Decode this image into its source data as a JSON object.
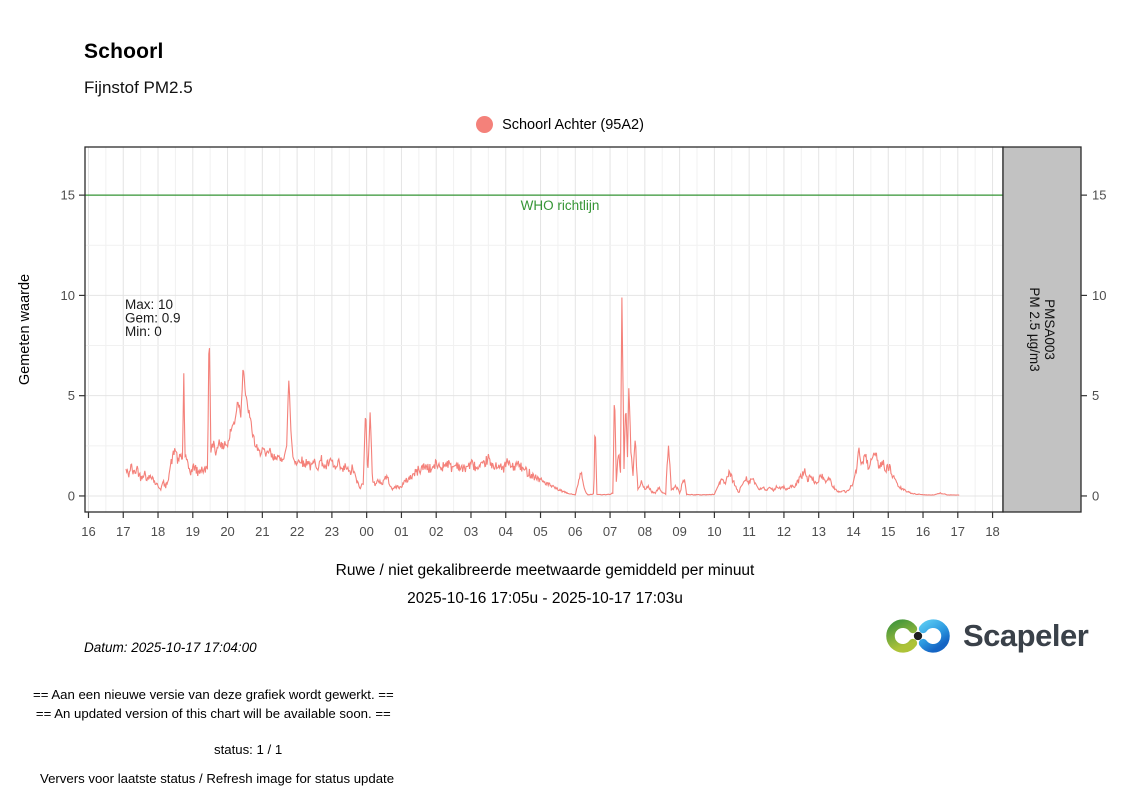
{
  "header": {
    "title": "Schoorl",
    "subtitle": "Fijnstof PM2.5"
  },
  "legend": {
    "label": "Schoorl Achter (95A2)",
    "color": "#f4817a"
  },
  "annotation": {
    "max": "Max: 10",
    "gem": "Gem: 0.9",
    "min": "Min: 0"
  },
  "facet_strip": {
    "line1": "PMSA003",
    "line2": "PM 2.5 µg/m3",
    "fill": "#c2c2c2",
    "border": "#2b2b2b"
  },
  "caption": {
    "line1": "Ruwe / niet gekalibreerde meetwaarde gemiddeld per minuut",
    "line2": "2025-10-16 17:05u - 2025-10-17 17:03u"
  },
  "datum": "Datum: 2025-10-17 17:04:00",
  "brand": {
    "name": "Scapeler"
  },
  "messages": {
    "notice_nl": "== Aan een nieuwe versie van deze grafiek wordt gewerkt. ==",
    "notice_en": "== An updated version of this chart will be available soon. ==",
    "status": "status: 1 / 1",
    "refresh": "Ververs voor laatste status / Refresh image for status update"
  },
  "chart_data": {
    "type": "line",
    "title": "Schoorl - Fijnstof PM2.5",
    "series_name": "Schoorl Achter (95A2)",
    "line_color": "#f4817a",
    "ylabel": "Gemeten waarde",
    "xlabel": "",
    "x_axis_note": "x = hours on axis; 16 = 2025-10-16 16:00u, 42 = 2025-10-17 18:00u; data runs 17:05u to 17:03u next day",
    "xlim": [
      15.9,
      42.3
    ],
    "ylim": [
      -0.8,
      17.4
    ],
    "grid": true,
    "x_tick_values": [
      16,
      17,
      18,
      19,
      20,
      21,
      22,
      23,
      24,
      25,
      26,
      27,
      28,
      29,
      30,
      31,
      32,
      33,
      34,
      35,
      36,
      37,
      38,
      39,
      40,
      41,
      42
    ],
    "x_tick_labels": [
      "16",
      "17",
      "18",
      "19",
      "20",
      "21",
      "22",
      "23",
      "00",
      "01",
      "02",
      "03",
      "04",
      "05",
      "06",
      "07",
      "08",
      "09",
      "10",
      "11",
      "12",
      "13",
      "14",
      "15",
      "16",
      "17",
      "18"
    ],
    "y_tick_values": [
      0,
      5,
      10,
      15
    ],
    "y_minor_values": [
      2.5,
      7.5,
      12.5
    ],
    "reference_line": {
      "y": 15,
      "label": "WHO richtlijn",
      "color": "#359535"
    },
    "stats": {
      "max": 10,
      "mean": 0.9,
      "min": 0
    },
    "noise": 0.2,
    "keypoints": [
      [
        17.08,
        1.3
      ],
      [
        17.15,
        1.0
      ],
      [
        17.22,
        1.5
      ],
      [
        17.3,
        1.1
      ],
      [
        17.4,
        1.4
      ],
      [
        17.5,
        0.9
      ],
      [
        17.6,
        1.2
      ],
      [
        17.7,
        0.8
      ],
      [
        17.8,
        1.1
      ],
      [
        17.9,
        0.7
      ],
      [
        18.0,
        0.5
      ],
      [
        18.08,
        0.35
      ],
      [
        18.15,
        0.7
      ],
      [
        18.22,
        0.4
      ],
      [
        18.3,
        1.0
      ],
      [
        18.4,
        1.8
      ],
      [
        18.5,
        2.4
      ],
      [
        18.58,
        1.6
      ],
      [
        18.65,
        2.1
      ],
      [
        18.7,
        1.8
      ],
      [
        18.74,
        6.0
      ],
      [
        18.78,
        2.0
      ],
      [
        18.85,
        1.5
      ],
      [
        18.95,
        1.2
      ],
      [
        19.05,
        1.5
      ],
      [
        19.15,
        1.1
      ],
      [
        19.25,
        1.4
      ],
      [
        19.35,
        1.2
      ],
      [
        19.43,
        1.6
      ],
      [
        19.47,
        9.0
      ],
      [
        19.52,
        2.1
      ],
      [
        19.6,
        2.7
      ],
      [
        19.68,
        2.1
      ],
      [
        19.76,
        2.9
      ],
      [
        19.84,
        2.3
      ],
      [
        19.92,
        2.7
      ],
      [
        20.0,
        2.5
      ],
      [
        20.1,
        3.3
      ],
      [
        20.2,
        3.7
      ],
      [
        20.3,
        4.8
      ],
      [
        20.38,
        4.1
      ],
      [
        20.45,
        6.6
      ],
      [
        20.52,
        4.9
      ],
      [
        20.6,
        4.3
      ],
      [
        20.7,
        3.3
      ],
      [
        20.8,
        2.5
      ],
      [
        20.9,
        2.1
      ],
      [
        21.0,
        2.4
      ],
      [
        21.1,
        1.9
      ],
      [
        21.2,
        2.3
      ],
      [
        21.3,
        1.8
      ],
      [
        21.4,
        2.1
      ],
      [
        21.5,
        1.7
      ],
      [
        21.6,
        2.0
      ],
      [
        21.7,
        2.4
      ],
      [
        21.76,
        5.9
      ],
      [
        21.82,
        3.3
      ],
      [
        21.88,
        2.0
      ],
      [
        22.0,
        1.6
      ],
      [
        22.1,
        1.9
      ],
      [
        22.2,
        1.5
      ],
      [
        22.3,
        1.8
      ],
      [
        22.4,
        1.4
      ],
      [
        22.5,
        1.7
      ],
      [
        22.6,
        1.5
      ],
      [
        22.7,
        1.8
      ],
      [
        22.8,
        1.4
      ],
      [
        22.9,
        1.6
      ],
      [
        23.0,
        1.7
      ],
      [
        23.1,
        1.3
      ],
      [
        23.2,
        1.6
      ],
      [
        23.3,
        1.2
      ],
      [
        23.4,
        1.5
      ],
      [
        23.5,
        1.1
      ],
      [
        23.6,
        1.4
      ],
      [
        23.7,
        0.8
      ],
      [
        23.8,
        0.4
      ],
      [
        23.9,
        0.6
      ],
      [
        23.97,
        4.3
      ],
      [
        24.03,
        1.2
      ],
      [
        24.1,
        4.0
      ],
      [
        24.17,
        0.9
      ],
      [
        24.25,
        0.5
      ],
      [
        24.35,
        0.8
      ],
      [
        24.45,
        0.6
      ],
      [
        24.55,
        1.0
      ],
      [
        24.65,
        0.7
      ],
      [
        24.75,
        0.3
      ],
      [
        24.85,
        0.5
      ],
      [
        24.95,
        0.4
      ],
      [
        25.1,
        0.7
      ],
      [
        25.3,
        1.0
      ],
      [
        25.5,
        1.3
      ],
      [
        25.7,
        1.5
      ],
      [
        25.85,
        1.3
      ],
      [
        26.0,
        1.6
      ],
      [
        26.15,
        1.4
      ],
      [
        26.3,
        1.7
      ],
      [
        26.45,
        1.4
      ],
      [
        26.6,
        1.6
      ],
      [
        26.75,
        1.3
      ],
      [
        26.9,
        1.5
      ],
      [
        27.05,
        1.6
      ],
      [
        27.2,
        1.3
      ],
      [
        27.35,
        1.5
      ],
      [
        27.5,
        1.9
      ],
      [
        27.6,
        1.4
      ],
      [
        27.75,
        1.6
      ],
      [
        27.9,
        1.3
      ],
      [
        28.05,
        1.7
      ],
      [
        28.2,
        1.4
      ],
      [
        28.35,
        1.6
      ],
      [
        28.5,
        1.3
      ],
      [
        28.65,
        1.2
      ],
      [
        28.8,
        1.0
      ],
      [
        29.0,
        0.8
      ],
      [
        29.2,
        0.6
      ],
      [
        29.4,
        0.4
      ],
      [
        29.6,
        0.25
      ],
      [
        29.8,
        0.12
      ],
      [
        30.0,
        0.06
      ],
      [
        30.1,
        0.7
      ],
      [
        30.17,
        1.2
      ],
      [
        30.25,
        0.4
      ],
      [
        30.35,
        0.06
      ],
      [
        30.53,
        0.1
      ],
      [
        30.57,
        3.8
      ],
      [
        30.62,
        0.08
      ],
      [
        30.8,
        0.06
      ],
      [
        31.0,
        0.08
      ],
      [
        31.08,
        0.15
      ],
      [
        31.13,
        5.4
      ],
      [
        31.18,
        0.7
      ],
      [
        31.25,
        2.2
      ],
      [
        31.3,
        1.0
      ],
      [
        31.34,
        10.1
      ],
      [
        31.4,
        1.4
      ],
      [
        31.45,
        4.7
      ],
      [
        31.5,
        2.0
      ],
      [
        31.54,
        5.3
      ],
      [
        31.6,
        2.3
      ],
      [
        31.66,
        1.0
      ],
      [
        31.72,
        2.8
      ],
      [
        31.8,
        0.4
      ],
      [
        31.9,
        0.7
      ],
      [
        32.0,
        0.3
      ],
      [
        32.1,
        0.5
      ],
      [
        32.2,
        0.2
      ],
      [
        32.3,
        0.15
      ],
      [
        32.4,
        0.4
      ],
      [
        32.5,
        0.2
      ],
      [
        32.6,
        0.1
      ],
      [
        32.68,
        2.7
      ],
      [
        32.76,
        0.25
      ],
      [
        32.9,
        0.5
      ],
      [
        33.0,
        0.15
      ],
      [
        33.13,
        0.9
      ],
      [
        33.2,
        0.08
      ],
      [
        33.4,
        0.06
      ],
      [
        33.6,
        0.06
      ],
      [
        33.8,
        0.06
      ],
      [
        34.0,
        0.08
      ],
      [
        34.1,
        0.5
      ],
      [
        34.2,
        0.8
      ],
      [
        34.3,
        0.6
      ],
      [
        34.4,
        1.1
      ],
      [
        34.5,
        0.9
      ],
      [
        34.6,
        0.5
      ],
      [
        34.7,
        0.15
      ],
      [
        34.8,
        0.6
      ],
      [
        34.9,
        0.95
      ],
      [
        35.0,
        0.7
      ],
      [
        35.1,
        0.9
      ],
      [
        35.2,
        0.5
      ],
      [
        35.3,
        0.3
      ],
      [
        35.4,
        0.45
      ],
      [
        35.5,
        0.25
      ],
      [
        35.6,
        0.4
      ],
      [
        35.7,
        0.3
      ],
      [
        35.8,
        0.5
      ],
      [
        35.9,
        0.35
      ],
      [
        36.0,
        0.45
      ],
      [
        36.1,
        0.3
      ],
      [
        36.2,
        0.5
      ],
      [
        36.3,
        0.4
      ],
      [
        36.4,
        0.7
      ],
      [
        36.5,
        1.0
      ],
      [
        36.6,
        1.2
      ],
      [
        36.7,
        0.8
      ],
      [
        36.8,
        1.0
      ],
      [
        36.9,
        0.6
      ],
      [
        37.0,
        0.8
      ],
      [
        37.1,
        1.0
      ],
      [
        37.2,
        0.7
      ],
      [
        37.3,
        0.9
      ],
      [
        37.4,
        0.5
      ],
      [
        37.5,
        0.3
      ],
      [
        37.6,
        0.2
      ],
      [
        37.7,
        0.25
      ],
      [
        37.8,
        0.2
      ],
      [
        37.9,
        0.4
      ],
      [
        38.0,
        0.7
      ],
      [
        38.1,
        1.3
      ],
      [
        38.15,
        2.3
      ],
      [
        38.25,
        1.6
      ],
      [
        38.35,
        1.9
      ],
      [
        38.45,
        1.4
      ],
      [
        38.55,
        1.8
      ],
      [
        38.65,
        2.0
      ],
      [
        38.75,
        1.5
      ],
      [
        38.85,
        1.7
      ],
      [
        38.95,
        1.3
      ],
      [
        39.05,
        1.4
      ],
      [
        39.15,
        0.9
      ],
      [
        39.25,
        0.6
      ],
      [
        39.35,
        0.4
      ],
      [
        39.5,
        0.25
      ],
      [
        39.7,
        0.12
      ],
      [
        39.9,
        0.08
      ],
      [
        40.1,
        0.05
      ],
      [
        40.3,
        0.05
      ],
      [
        40.5,
        0.15
      ],
      [
        40.7,
        0.05
      ],
      [
        40.9,
        0.05
      ],
      [
        41.05,
        0.05
      ]
    ]
  }
}
